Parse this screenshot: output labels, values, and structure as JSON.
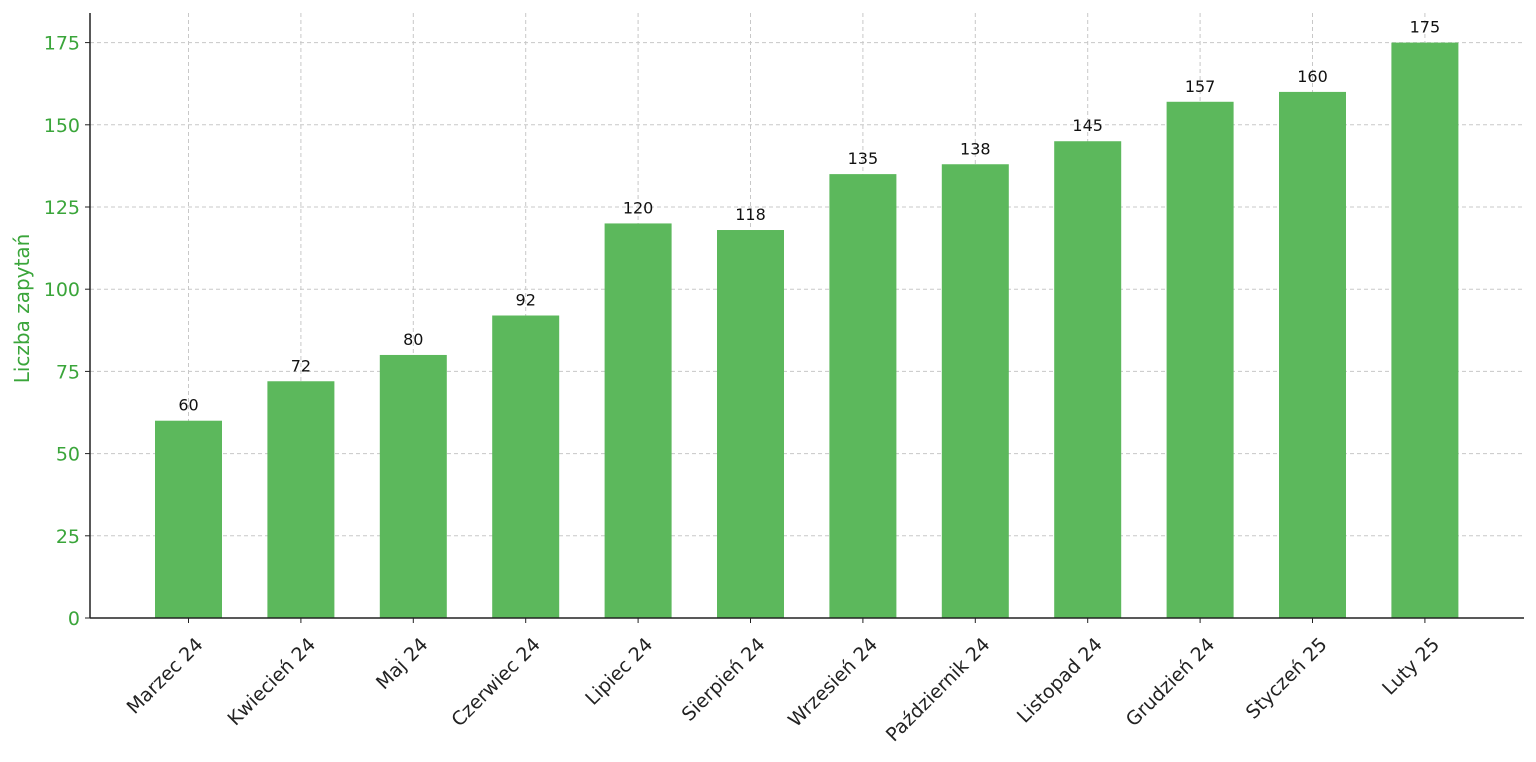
{
  "chart_data": {
    "type": "bar",
    "categories": [
      "Marzec 24",
      "Kwiecień 24",
      "Maj 24",
      "Czerwiec 24",
      "Lipiec 24",
      "Sierpień 24",
      "Wrzesień 24",
      "Październik 24",
      "Listopad 24",
      "Grudzień 24",
      "Styczeń 25",
      "Luty 25"
    ],
    "values": [
      60,
      72,
      80,
      92,
      120,
      118,
      135,
      138,
      145,
      157,
      160,
      175
    ],
    "ylabel": "Liczba zapytań",
    "xlabel": "",
    "title": "",
    "ylim": [
      0,
      184
    ],
    "yticks": [
      0,
      25,
      50,
      75,
      100,
      125,
      150,
      175
    ],
    "grid": true,
    "data_labels": true,
    "colors": {
      "bar": "#5cb85c",
      "axis_text": "#3aa53a",
      "grid": "#c8c8c8"
    }
  }
}
